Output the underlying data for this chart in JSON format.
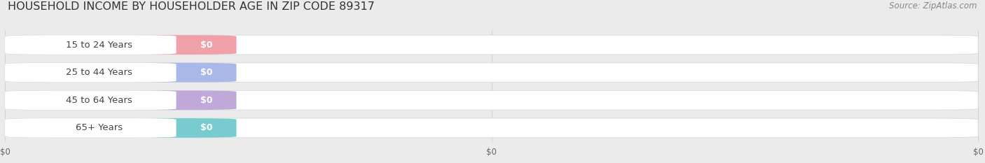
{
  "title": "HOUSEHOLD INCOME BY HOUSEHOLDER AGE IN ZIP CODE 89317",
  "source_text": "Source: ZipAtlas.com",
  "categories": [
    "15 to 24 Years",
    "25 to 44 Years",
    "45 to 64 Years",
    "65+ Years"
  ],
  "values": [
    0,
    0,
    0,
    0
  ],
  "pill_colors": [
    "#f0a0a8",
    "#a8b8e8",
    "#c0a8d8",
    "#78ccd0"
  ],
  "track_bg": "#ebebeb",
  "value_labels": [
    "$0",
    "$0",
    "$0",
    "$0"
  ],
  "x_tick_positions": [
    0.0,
    0.5,
    1.0
  ],
  "x_tick_labels": [
    "$0",
    "$0",
    "$0"
  ],
  "background_color": "#ebebeb",
  "title_fontsize": 11.5,
  "source_fontsize": 8.5,
  "cat_fontsize": 9.5,
  "val_fontsize": 9.0
}
